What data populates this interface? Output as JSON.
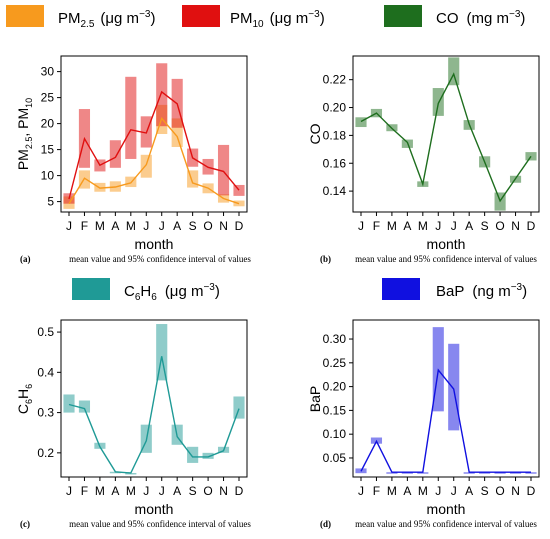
{
  "months": [
    "J",
    "F",
    "M",
    "A",
    "M",
    "J",
    "J",
    "A",
    "S",
    "O",
    "N",
    "D"
  ],
  "xlabel": "month",
  "caption": "mean value and 95% confidence interval of values",
  "colors": {
    "pm25": "#f79a1e",
    "pm10": "#e01010",
    "co": "#1e6e1e",
    "c6h6": "#1f9a96",
    "bap": "#1010e0"
  },
  "legends": {
    "pm25": {
      "base": "PM",
      "sub": "2.5",
      "unit_pre": "(μg m",
      "unit_sup": "−3",
      "unit_post": ")"
    },
    "pm10": {
      "base": "PM",
      "sub": "10",
      "unit_pre": "(μg m",
      "unit_sup": "−3",
      "unit_post": ")"
    },
    "co": {
      "base": "CO",
      "unit_pre": "(mg m",
      "unit_sup": "−3",
      "unit_post": ")"
    },
    "c6h6": {
      "c": "C",
      "six1": "6",
      "h": "H",
      "six2": "6",
      "unit_pre": "(μg m",
      "unit_sup": "−3",
      "unit_post": ")"
    },
    "bap": {
      "base": "BaP",
      "unit_pre": "(ng m",
      "unit_sup": "−3",
      "unit_post": ")"
    }
  },
  "panels": {
    "a": {
      "label": "(a)",
      "ylabel_parts": {
        "pm": "PM",
        "s1": "2.5",
        "mid": ", PM",
        "s2": "10"
      }
    },
    "b": {
      "label": "(b)",
      "ylabel": "CO"
    },
    "c": {
      "label": "(c)",
      "ylabel_parts": {
        "c": "C",
        "s1": "6",
        "h": "H",
        "s2": "6"
      }
    },
    "d": {
      "label": "(d)",
      "ylabel": "BaP"
    }
  },
  "chart_data": [
    {
      "type": "line",
      "panel": "a",
      "ylim": [
        3,
        33
      ],
      "yticks": [
        "5",
        "10",
        "15",
        "20",
        "25",
        "30"
      ],
      "categories": [
        "J",
        "F",
        "M",
        "A",
        "M",
        "J",
        "J",
        "A",
        "S",
        "O",
        "N",
        "D"
      ],
      "series": [
        {
          "name": "PM2.5",
          "color": "#f79a1e",
          "values": [
            4.6,
            9.5,
            7.6,
            7.8,
            8.6,
            12.1,
            21.0,
            17.5,
            8.6,
            7.6,
            5.6,
            4.6
          ],
          "ci_low": [
            3.6,
            7.5,
            6.9,
            6.9,
            7.8,
            9.6,
            18.0,
            15.5,
            7.7,
            6.6,
            4.8,
            4.1
          ],
          "ci_high": [
            6.0,
            11.0,
            8.6,
            8.9,
            9.8,
            14.0,
            23.6,
            21.0,
            11.0,
            8.5,
            6.4,
            5.2
          ]
        },
        {
          "name": "PM10",
          "color": "#e01010",
          "values": [
            5.5,
            17.1,
            12.0,
            13.5,
            18.8,
            18.2,
            26.1,
            23.8,
            13.4,
            11.6,
            10.8,
            7.2
          ],
          "ci_low": [
            4.6,
            11.5,
            10.8,
            11.5,
            13.2,
            15.4,
            19.5,
            19.2,
            11.7,
            10.2,
            6.2,
            6.1
          ],
          "ci_high": [
            6.6,
            22.8,
            13.1,
            16.8,
            29.0,
            21.4,
            31.6,
            28.6,
            15.2,
            13.2,
            15.9,
            8.2
          ]
        }
      ]
    },
    {
      "type": "line",
      "panel": "b",
      "ylim": [
        0.125,
        0.237
      ],
      "yticks": [
        "0.14",
        "0.16",
        "0.18",
        "0.20",
        "0.22"
      ],
      "categories": [
        "J",
        "F",
        "M",
        "A",
        "M",
        "J",
        "J",
        "A",
        "S",
        "O",
        "N",
        "D"
      ],
      "series": [
        {
          "name": "CO",
          "color": "#1e6e1e",
          "values": [
            0.19,
            0.196,
            0.185,
            0.175,
            0.145,
            0.203,
            0.224,
            0.188,
            0.161,
            0.133,
            0.149,
            0.165
          ],
          "ci_low": [
            0.186,
            0.193,
            0.183,
            0.171,
            0.143,
            0.194,
            0.216,
            0.184,
            0.157,
            0.126,
            0.146,
            0.162
          ],
          "ci_high": [
            0.193,
            0.199,
            0.188,
            0.177,
            0.147,
            0.214,
            0.236,
            0.191,
            0.165,
            0.139,
            0.151,
            0.168
          ]
        }
      ]
    },
    {
      "type": "line",
      "panel": "c",
      "ylim": [
        0.14,
        0.53
      ],
      "yticks": [
        "0.2",
        "0.3",
        "0.4",
        "0.5"
      ],
      "categories": [
        "J",
        "F",
        "M",
        "A",
        "M",
        "J",
        "J",
        "A",
        "S",
        "O",
        "N",
        "D"
      ],
      "series": [
        {
          "name": "C6H6",
          "color": "#1f9a96",
          "values": [
            0.32,
            0.31,
            0.215,
            0.153,
            0.15,
            0.23,
            0.44,
            0.24,
            0.19,
            0.19,
            0.205,
            0.31
          ],
          "ci_low": [
            0.3,
            0.3,
            0.21,
            0.153,
            0.15,
            0.2,
            0.38,
            0.22,
            0.175,
            0.185,
            0.2,
            0.285
          ],
          "ci_high": [
            0.345,
            0.33,
            0.225,
            0.153,
            0.15,
            0.27,
            0.52,
            0.27,
            0.215,
            0.2,
            0.215,
            0.34
          ]
        }
      ]
    },
    {
      "type": "line",
      "panel": "d",
      "ylim": [
        0.01,
        0.34
      ],
      "yticks": [
        "0.05",
        "0.10",
        "0.15",
        "0.20",
        "0.25",
        "0.30"
      ],
      "categories": [
        "J",
        "F",
        "M",
        "A",
        "M",
        "J",
        "J",
        "A",
        "S",
        "O",
        "N",
        "D"
      ],
      "series": [
        {
          "name": "BaP",
          "color": "#1010e0",
          "values": [
            0.022,
            0.085,
            0.02,
            0.02,
            0.02,
            0.235,
            0.195,
            0.02,
            0.02,
            0.02,
            0.02,
            0.02
          ],
          "ci_low": [
            0.018,
            0.08,
            0.02,
            0.02,
            0.02,
            0.148,
            0.108,
            0.02,
            0.02,
            0.02,
            0.02,
            0.02
          ],
          "ci_high": [
            0.028,
            0.093,
            0.02,
            0.02,
            0.02,
            0.325,
            0.29,
            0.02,
            0.02,
            0.02,
            0.02,
            0.02
          ]
        }
      ]
    }
  ]
}
